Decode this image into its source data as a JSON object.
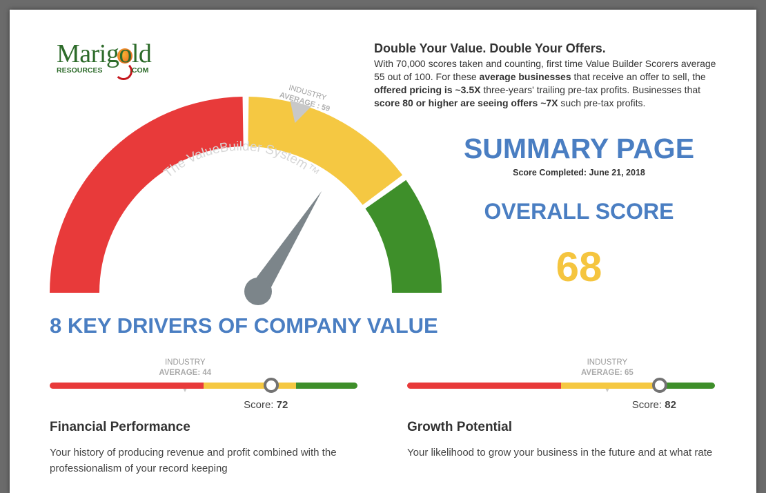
{
  "logo": {
    "word": "Marigold",
    "sub_left": "RESOURCES",
    "sub_right": ".COM"
  },
  "gauge": {
    "brand_text": "The ValueBuilder System™",
    "industry_label": "INDUSTRY",
    "industry_avg_label": "AVERAGE : 59",
    "industry_average": 59,
    "overall_score": 68,
    "colors": {
      "red": "#e83a3a",
      "yellow": "#f5c842",
      "green": "#3e8f2a",
      "needle": "#7c858a"
    }
  },
  "intro": {
    "heading": "Double Your Value. Double Your Offers.",
    "t1": "With 70,000 scores taken and counting, first time Value Builder Scorers average 55 out of 100.  For these ",
    "b1": "average businesses",
    "t2": " that receive an offer to sell, the ",
    "b2": "offered pricing is ~3.5X",
    "t3": " three-years' trailing pre-tax profits.  Businesses that ",
    "b3": "score 80 or higher are seeing offers ~7X",
    "t4": " such pre-tax profits."
  },
  "summary": {
    "title": "SUMMARY PAGE",
    "completed": "Score Completed: June 21, 2018",
    "overall_title": "OVERALL SCORE",
    "overall_value": "68"
  },
  "drivers_title": "8 KEY DRIVERS OF COMPANY VALUE",
  "drivers": [
    {
      "industry_label": "INDUSTRY",
      "industry_avg_label": "AVERAGE: 44",
      "industry_average": 44,
      "score_label": "Score: ",
      "score_value": "72",
      "score": 72,
      "segments": [
        0.5,
        0.3,
        0.2
      ],
      "name": "Financial Performance",
      "description": "Your history of producing revenue and profit combined with the professionalism of your record keeping"
    },
    {
      "industry_label": "INDUSTRY",
      "industry_avg_label": "AVERAGE: 65",
      "industry_average": 65,
      "score_label": "Score: ",
      "score_value": "82",
      "score": 82,
      "segments": [
        0.5,
        0.3,
        0.2
      ],
      "name": "Growth Potential",
      "description": "Your likelihood to grow your business in the future and at what rate"
    }
  ]
}
